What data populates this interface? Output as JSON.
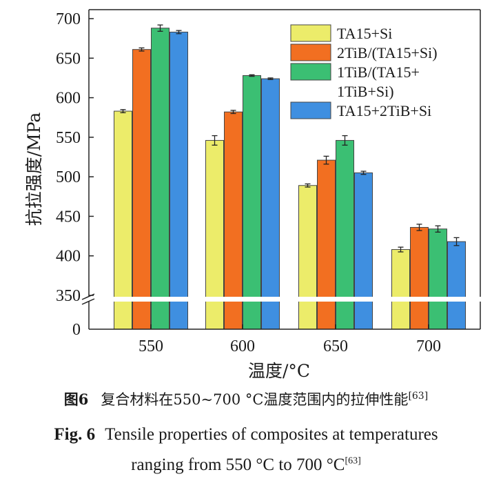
{
  "chart_data": {
    "type": "bar",
    "categories": [
      "550",
      "600",
      "650",
      "700"
    ],
    "series": [
      {
        "name": "TA15+Si",
        "color": "#ecec6a",
        "values": [
          583,
          546,
          489,
          408
        ],
        "errors": [
          2,
          6,
          2,
          3
        ]
      },
      {
        "name": "2TiB/(TA15+Si)",
        "color": "#f26f21",
        "values": [
          661,
          582,
          521,
          436
        ],
        "errors": [
          2,
          2,
          5,
          4
        ]
      },
      {
        "name_lines": [
          "1TiB/(TA15+",
          "1TiB+Si)"
        ],
        "color": "#3bbf73",
        "values": [
          688,
          628,
          546,
          434
        ],
        "errors": [
          4,
          1,
          6,
          4
        ]
      },
      {
        "name": "TA15+2TiB+Si",
        "color": "#3f8fe0",
        "values": [
          683,
          624,
          505,
          418
        ],
        "errors": [
          2,
          1,
          2,
          5
        ]
      }
    ],
    "ylabel": "抗拉强度/MPa",
    "xlabel": "温度/°C",
    "y_ticks": [
      "0",
      "350",
      "400",
      "450",
      "500",
      "550",
      "600",
      "650",
      "700"
    ],
    "ylim": [
      350,
      700
    ],
    "axis_break": true,
    "grid": false,
    "legend_position": "top-right"
  },
  "caption": {
    "zh_label": "图6",
    "zh_text": "复合材料在550~700 °C温度范围内的拉伸性能",
    "ref": "[63]",
    "en_label": "Fig. 6",
    "en_line1": "Tensile properties of composites at temperatures",
    "en_line2": "ranging from 550 °C to 700 °C"
  }
}
